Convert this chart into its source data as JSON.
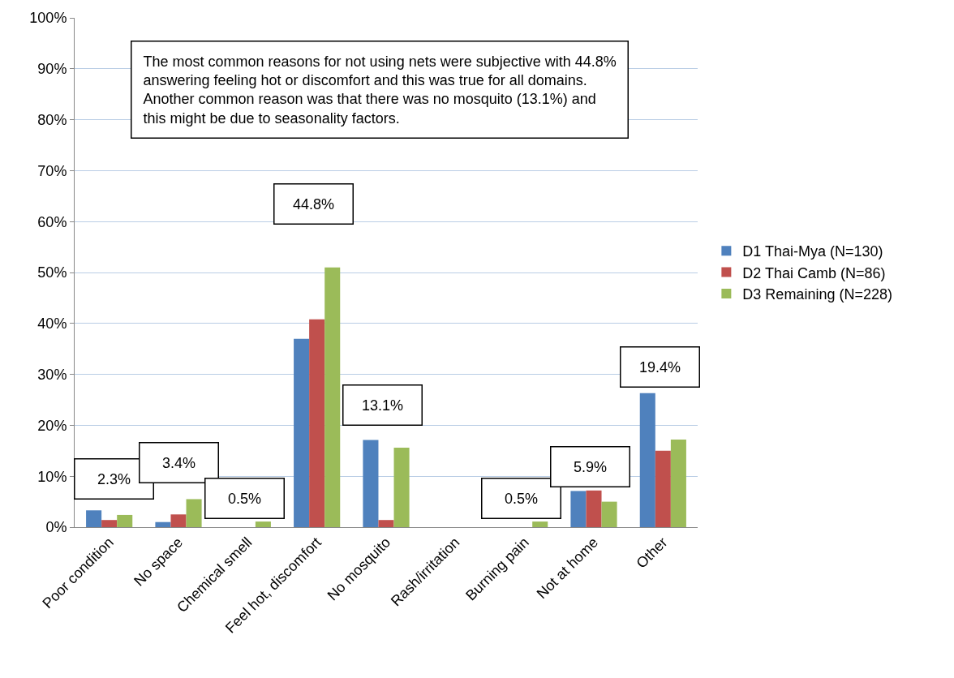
{
  "chart_data": {
    "type": "bar",
    "categories": [
      "Poor condition",
      "No space",
      "Chemical smell",
      "Feel hot, discomfort",
      "No mosquito",
      "Rash/irritation",
      "Burning pain",
      "Not at home",
      "Other"
    ],
    "series": [
      {
        "name": "D1 Thai-Mya (N=130)",
        "color": "#4f81bd",
        "values": [
          3.3,
          1.0,
          0,
          37.0,
          17.1,
          0,
          0,
          7.1,
          26.3
        ]
      },
      {
        "name": "D2 Thai Camb (N=86)",
        "color": "#c0504d",
        "values": [
          1.4,
          2.5,
          0,
          40.8,
          1.4,
          0,
          0,
          7.2,
          15.0
        ]
      },
      {
        "name": "D3 Remaining (N=228)",
        "color": "#9bbb59",
        "values": [
          2.4,
          5.5,
          1.1,
          51.0,
          15.6,
          0,
          1.1,
          5.0,
          17.2
        ]
      }
    ],
    "ylim": [
      0,
      100
    ],
    "yticks": [
      {
        "value": 0,
        "label": "0%"
      },
      {
        "value": 10,
        "label": "10%"
      },
      {
        "value": 20,
        "label": "20%"
      },
      {
        "value": 30,
        "label": "30%"
      },
      {
        "value": 40,
        "label": "40%"
      },
      {
        "value": 50,
        "label": "50%"
      },
      {
        "value": 60,
        "label": "60%"
      },
      {
        "value": 70,
        "label": "70%"
      },
      {
        "value": 80,
        "label": "80%"
      },
      {
        "value": 90,
        "label": "90%"
      },
      {
        "value": 100,
        "label": "100%"
      }
    ],
    "grid": "y",
    "legend": "right",
    "annotations": [
      "The most common reasons for not using nets were subjective with 44.8%\nanswering feeling hot or discomfort and this was true for all domains.\nAnother common reason was that there was no mosquito (13.1%) and\nthis might be due to seasonality factors.",
      "2.3%",
      "3.4%",
      "0.5%",
      "44.8%",
      "13.1%",
      "0.5%",
      "5.9%",
      "19.4%"
    ]
  }
}
